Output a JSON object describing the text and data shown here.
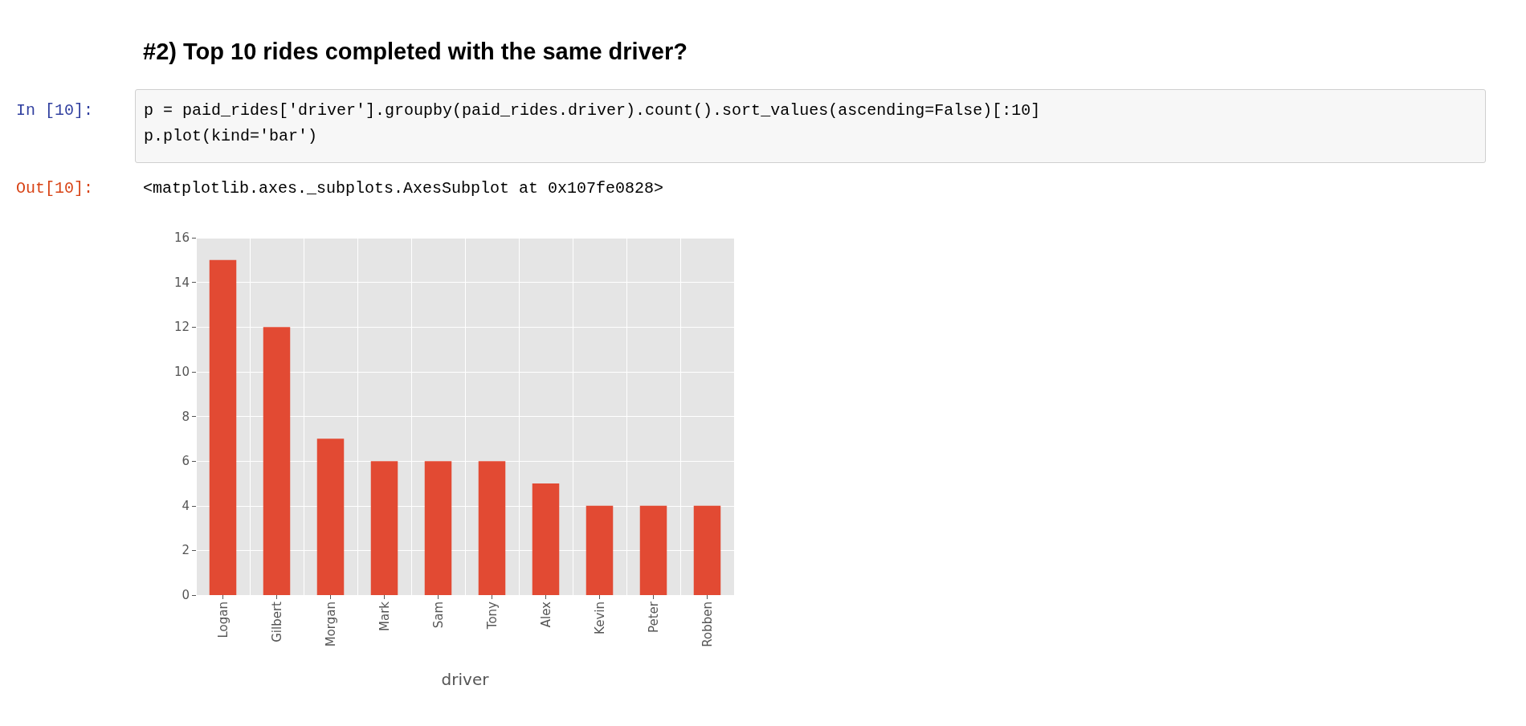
{
  "chart_data": {
    "type": "bar",
    "title": "#2) Top 10 rides completed with the same driver?",
    "annotations": [
      "In [10]:",
      "p = paid_rides['driver'].groupby(paid_rides.driver).count().sort_values(ascending=False)[:10]",
      "p.plot(kind='bar')",
      "Out[10]:",
      "<matplotlib.axes._subplots.AxesSubplot at 0x107fe0828>"
    ],
    "xlabel": "driver",
    "categories": [
      "Logan",
      "Gilbert",
      "Morgan",
      "Mark",
      "Sam",
      "Tony",
      "Alex",
      "Kevin",
      "Peter",
      "Robben"
    ],
    "values": [
      15,
      12,
      7,
      6,
      6,
      6,
      5,
      4,
      4,
      4
    ],
    "color": "#e24a33",
    "ylim": [
      0,
      16
    ],
    "yticks": [
      0,
      2,
      4,
      6,
      8,
      10,
      12,
      14,
      16
    ],
    "grid": true
  }
}
